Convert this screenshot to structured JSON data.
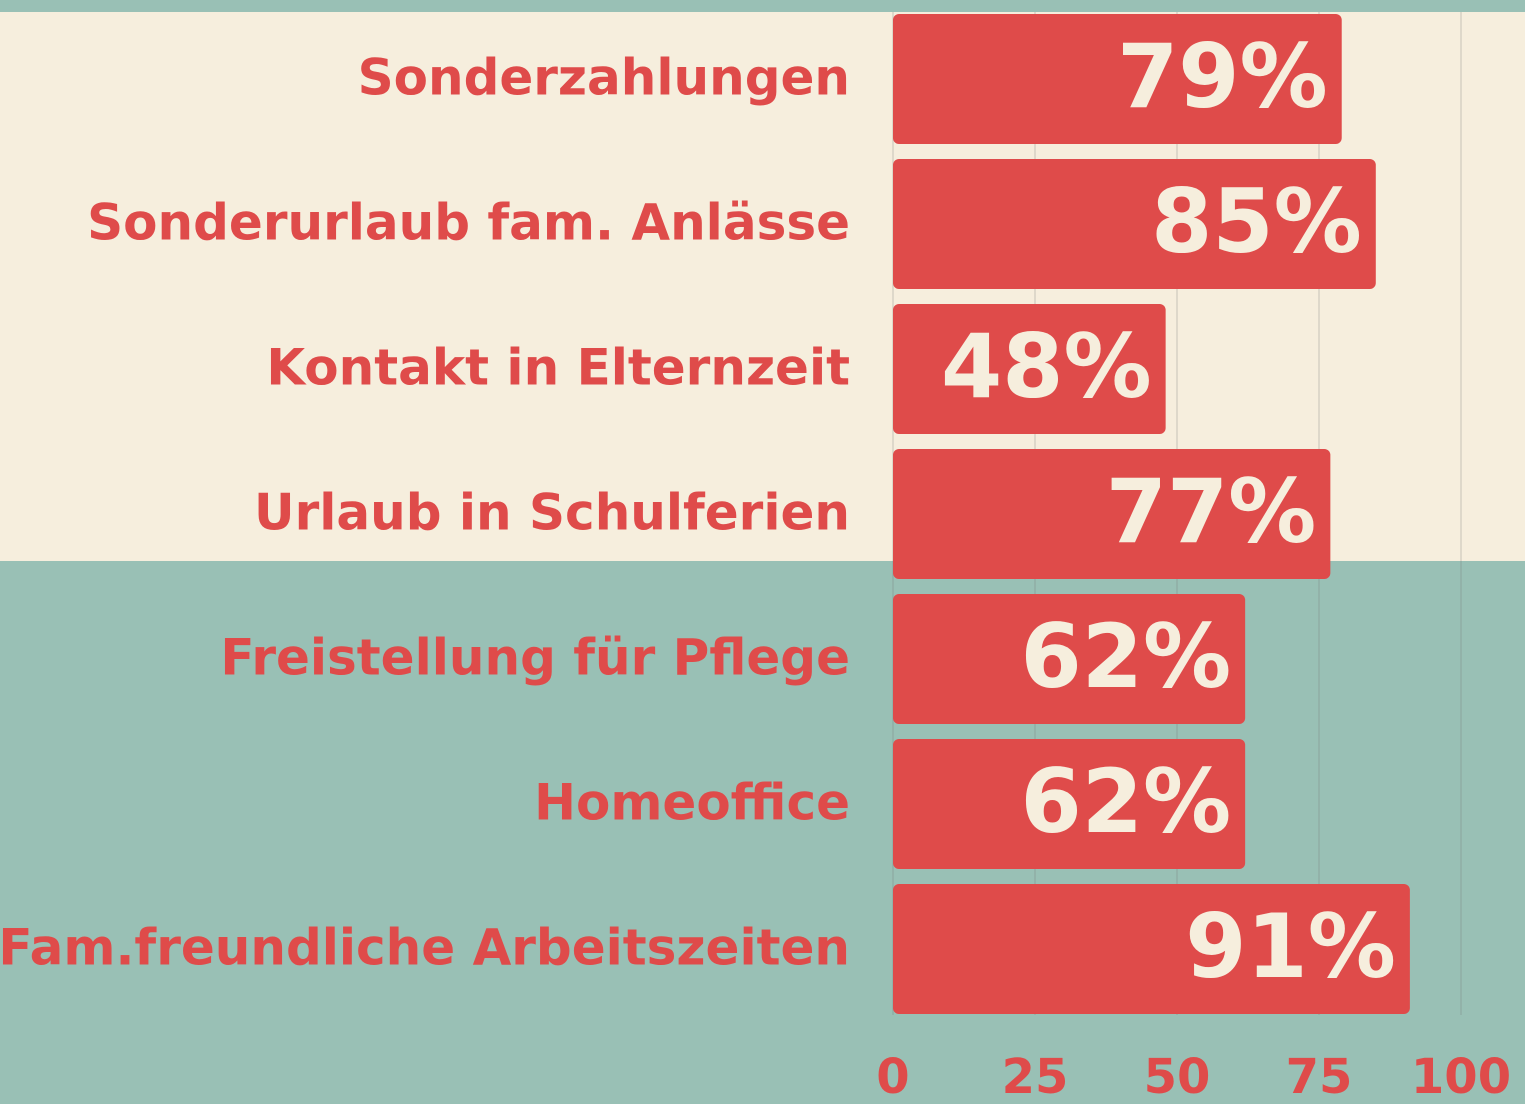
{
  "chart_data": {
    "type": "bar",
    "orientation": "horizontal",
    "categories": [
      "Sonderzahlungen",
      "Sonderurlaub fam. Anlässe",
      "Kontakt in Elternzeit",
      "Urlaub in Schulferien",
      "Freistellung für Pflege",
      "Homeoffice",
      "Fam.freundliche Arbeitszeiten"
    ],
    "values": [
      79,
      85,
      48,
      77,
      62,
      62,
      91
    ],
    "value_labels": [
      "79%",
      "85%",
      "48%",
      "77%",
      "62%",
      "62%",
      "91%"
    ],
    "color": "#df4b4a",
    "xlim": [
      0,
      100
    ],
    "xticks": [
      0,
      25,
      50,
      75,
      100
    ],
    "grid": true
  }
}
